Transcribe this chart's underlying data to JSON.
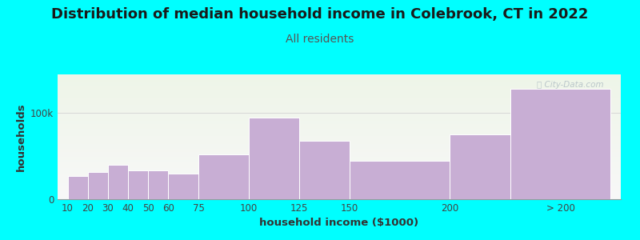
{
  "title": "Distribution of median household income in Colebrook, CT in 2022",
  "subtitle": "All residents",
  "xlabel": "household income ($1000)",
  "ylabel": "households",
  "bar_labels": [
    "10",
    "20",
    "30",
    "40",
    "50",
    "60",
    "75",
    "100",
    "125",
    "150",
    "200",
    "> 200"
  ],
  "bar_values": [
    27000,
    32000,
    40000,
    33000,
    33000,
    30000,
    52000,
    95000,
    68000,
    45000,
    75000,
    128000
  ],
  "bar_color": "#c8aed4",
  "bar_edge_color": "#ffffff",
  "background_color": "#00ffff",
  "plot_bg_top": "#eef5e8",
  "plot_bg_bottom": "#f8f8f8",
  "title_fontsize": 13,
  "subtitle_fontsize": 10,
  "subtitle_color": "#555555",
  "axis_label_fontsize": 9.5,
  "tick_fontsize": 8.5,
  "watermark_text": "ⓘ City-Data.com",
  "watermark_color": "#aab8c0",
  "ylim": [
    0,
    145000
  ],
  "x_positions": [
    10,
    20,
    30,
    40,
    50,
    60,
    75,
    100,
    125,
    150,
    200,
    230
  ],
  "x_widths": [
    10,
    10,
    10,
    10,
    10,
    15,
    25,
    25,
    25,
    50,
    30,
    50
  ],
  "x_tick_pos": [
    10,
    20,
    30,
    40,
    50,
    60,
    75,
    100,
    125,
    150,
    200,
    255
  ],
  "xlim": [
    5,
    285
  ]
}
